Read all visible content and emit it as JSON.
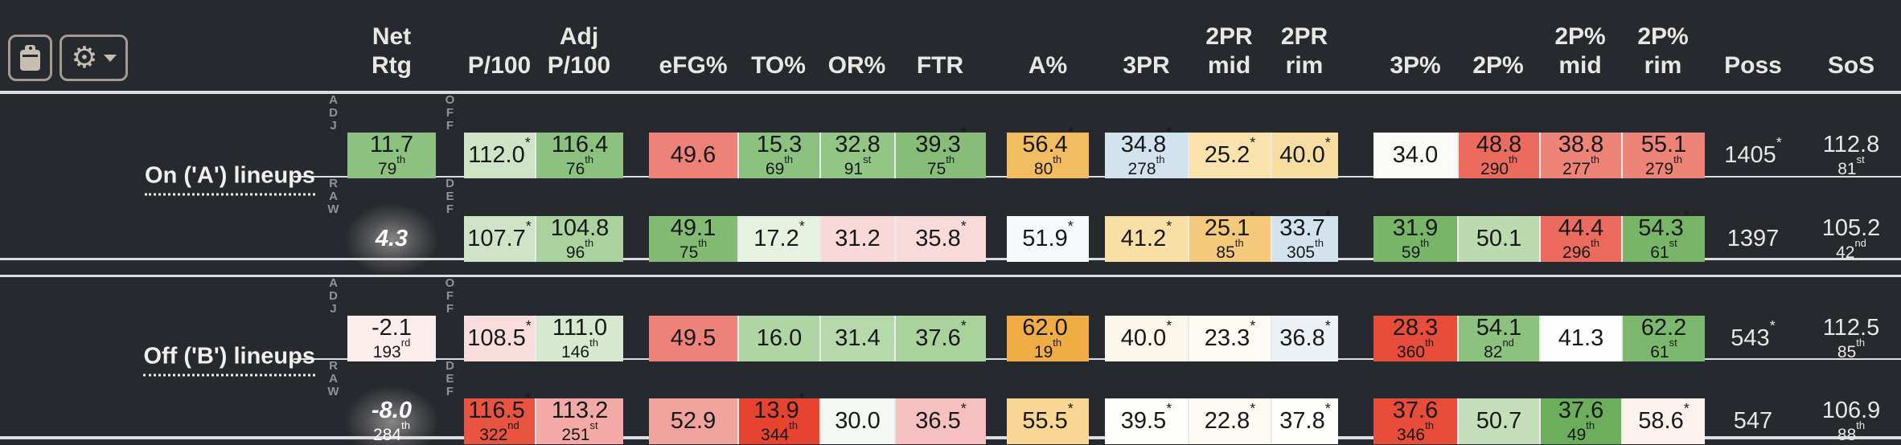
{
  "colors": {
    "background": "#26292e",
    "divider": "#dcdde0",
    "header_text": "#e9e7e3",
    "cell_text": "#17181a",
    "muted_label": "#8f9296",
    "button_border": "#a39b8f",
    "icon": "#c6beb2"
  },
  "toolbar": {
    "buttons": [
      {
        "name": "clipboard",
        "icon": "clipboard-icon"
      },
      {
        "name": "settings",
        "icon": "gear-icon",
        "has_caret": true
      }
    ]
  },
  "header": {
    "columns": [
      {
        "key": "net",
        "l1": "Net",
        "l2": "Rtg"
      },
      {
        "key": "p100",
        "l1": "",
        "l2": "P/100"
      },
      {
        "key": "adjp100",
        "l1": "Adj",
        "l2": "P/100"
      },
      {
        "key": "efg",
        "l1": "",
        "l2": "eFG%"
      },
      {
        "key": "to",
        "l1": "",
        "l2": "TO%"
      },
      {
        "key": "or",
        "l1": "",
        "l2": "OR%"
      },
      {
        "key": "ftr",
        "l1": "",
        "l2": "FTR"
      },
      {
        "key": "a",
        "l1": "",
        "l2": "A%"
      },
      {
        "key": "pr3",
        "l1": "",
        "l2": "3PR"
      },
      {
        "key": "prmid",
        "l1": "2PR",
        "l2": "mid"
      },
      {
        "key": "prrim",
        "l1": "2PR",
        "l2": "rim"
      },
      {
        "key": "p3",
        "l1": "",
        "l2": "3P%"
      },
      {
        "key": "p2",
        "l1": "",
        "l2": "2P%"
      },
      {
        "key": "p2mid",
        "l1": "2P%",
        "l2": "mid"
      },
      {
        "key": "p2rim",
        "l1": "2P%",
        "l2": "rim"
      },
      {
        "key": "poss",
        "l1": "",
        "l2": "Poss"
      },
      {
        "key": "sos",
        "l1": "",
        "l2": "SoS"
      }
    ]
  },
  "groups": [
    {
      "label": "On ('A') lineups",
      "rows": [
        {
          "row_label": "ADJ",
          "side_label": "OFF",
          "cells": {
            "net": {
              "v": "11.7",
              "pct": "79th",
              "bg": "#8cc17f"
            },
            "p100": {
              "v": "112.0",
              "star": true,
              "bg": "#cfe4c6"
            },
            "adjp100": {
              "v": "116.4",
              "pct": "76th",
              "bg": "#8cc17f"
            },
            "efg": {
              "v": "49.6",
              "bg": "#ee8279"
            },
            "to": {
              "v": "15.3",
              "pct": "69th",
              "bg": "#8cc17f"
            },
            "or": {
              "v": "32.8",
              "pct": "91st",
              "bg": "#93c585"
            },
            "ftr": {
              "v": "39.3",
              "star": true,
              "pct": "75th",
              "bg": "#87bd78"
            },
            "a": {
              "v": "56.4",
              "star": true,
              "pct": "80th",
              "bg": "#f2bd60"
            },
            "pr3": {
              "v": "34.8",
              "star": true,
              "pct": "278th",
              "bg": "#d2e3ed"
            },
            "prmid": {
              "v": "25.2",
              "star": true,
              "bg": "#f9e2ab"
            },
            "prrim": {
              "v": "40.0",
              "star": true,
              "bg": "#f8dda1"
            },
            "p3": {
              "v": "34.0",
              "bg": "#fafaf6"
            },
            "p2": {
              "v": "48.8",
              "pct": "290th",
              "bg": "#eb6c5f"
            },
            "p2mid": {
              "v": "38.8",
              "pct": "277th",
              "bg": "#ee8478"
            },
            "p2rim": {
              "v": "55.1",
              "pct": "279th",
              "bg": "#ee8478"
            },
            "poss": {
              "v": "1405",
              "star": true
            },
            "sos": {
              "v": "112.8",
              "pct": "81st"
            }
          }
        },
        {
          "row_label": "RAW",
          "side_label": "DEF",
          "cells": {
            "net": {
              "v": "4.3",
              "glow": true
            },
            "p100": {
              "v": "107.7",
              "star": true,
              "bg": "#cfe4c6"
            },
            "adjp100": {
              "v": "104.8",
              "pct": "96th",
              "bg": "#abd29e"
            },
            "efg": {
              "v": "49.1",
              "pct": "75th",
              "bg": "#83ba74"
            },
            "to": {
              "v": "17.2",
              "star": true,
              "bg": "#e6f1e0"
            },
            "or": {
              "v": "31.2",
              "bg": "#f8d8d8"
            },
            "ftr": {
              "v": "35.8",
              "star": true,
              "bg": "#f9dada"
            },
            "a": {
              "v": "51.9",
              "star": true,
              "bg": "#f6fafa"
            },
            "pr3": {
              "v": "41.2",
              "star": true,
              "bg": "#f8dfa6"
            },
            "prmid": {
              "v": "25.1",
              "star": true,
              "pct": "85th",
              "bg": "#f5c97b"
            },
            "prrim": {
              "v": "33.7",
              "star": true,
              "pct": "305th",
              "bg": "#d2e3ed"
            },
            "p3": {
              "v": "31.9",
              "pct": "59th",
              "bg": "#79b569"
            },
            "p2": {
              "v": "50.1",
              "bg": "#bcdab0"
            },
            "p2mid": {
              "v": "44.4",
              "pct": "296th",
              "bg": "#eb6c5f"
            },
            "p2rim": {
              "v": "54.3",
              "star": true,
              "pct": "61st",
              "bg": "#79b569"
            },
            "poss": {
              "v": "1397"
            },
            "sos": {
              "v": "105.2",
              "pct": "42nd"
            }
          }
        }
      ]
    },
    {
      "label": "Off ('B') lineups",
      "rows": [
        {
          "row_label": "ADJ",
          "side_label": "OFF",
          "cells": {
            "net": {
              "v": "-2.1",
              "pct": "193rd",
              "bg": "#fbedeb"
            },
            "p100": {
              "v": "108.5",
              "star": true,
              "bg": "#f9dcdc"
            },
            "adjp100": {
              "v": "111.0",
              "pct": "146th",
              "bg": "#d6e8ce"
            },
            "efg": {
              "v": "49.5",
              "bg": "#ee8279"
            },
            "to": {
              "v": "16.0",
              "bg": "#b0d5a4"
            },
            "or": {
              "v": "31.4",
              "bg": "#b6d8aa"
            },
            "ftr": {
              "v": "37.6",
              "star": true,
              "bg": "#a9d29c"
            },
            "a": {
              "v": "62.0",
              "star": true,
              "pct": "19th",
              "bg": "#f1ad45"
            },
            "pr3": {
              "v": "40.0",
              "star": true,
              "bg": "#fdf6eb"
            },
            "prmid": {
              "v": "23.3",
              "star": true,
              "bg": "#fefbf4"
            },
            "prrim": {
              "v": "36.8",
              "star": true,
              "bg": "#ebf1f4"
            },
            "p3": {
              "v": "28.3",
              "pct": "360th",
              "bg": "#e84c3a"
            },
            "p2": {
              "v": "54.1",
              "pct": "82nd",
              "bg": "#8cc17f"
            },
            "p2mid": {
              "v": "41.3",
              "bg": "#fefefe"
            },
            "p2rim": {
              "v": "62.2",
              "pct": "61st",
              "bg": "#7cb76e"
            },
            "poss": {
              "v": "543",
              "star": true
            },
            "sos": {
              "v": "112.5",
              "pct": "85th"
            }
          }
        },
        {
          "row_label": "RAW",
          "side_label": "DEF",
          "cells": {
            "net": {
              "v": "-8.0",
              "pct": "284th",
              "glow": true
            },
            "p100": {
              "v": "116.5",
              "star": true,
              "pct": "322nd",
              "bg": "#e85440"
            },
            "adjp100": {
              "v": "113.2",
              "pct": "251st",
              "bg": "#f3aaa6"
            },
            "efg": {
              "v": "52.9",
              "bg": "#f0a29c"
            },
            "to": {
              "v": "13.9",
              "star": true,
              "pct": "344th",
              "bg": "#e64330"
            },
            "or": {
              "v": "30.0",
              "bg": "#f4f7f2"
            },
            "ftr": {
              "v": "36.5",
              "star": true,
              "bg": "#f6c0c0"
            },
            "a": {
              "v": "55.5",
              "star": true,
              "bg": "#f8d795"
            },
            "pr3": {
              "v": "39.5",
              "star": true,
              "bg": "#fefefb"
            },
            "prmid": {
              "v": "22.8",
              "star": true,
              "bg": "#fefbf4"
            },
            "prrim": {
              "v": "37.8",
              "star": true,
              "bg": "#fdfdfa"
            },
            "p3": {
              "v": "37.6",
              "pct": "346th",
              "bg": "#e84c3a"
            },
            "p2": {
              "v": "50.7",
              "bg": "#c6dfbb"
            },
            "p2mid": {
              "v": "37.6",
              "pct": "49th",
              "bg": "#6cae5c"
            },
            "p2rim": {
              "v": "58.6",
              "star": true,
              "bg": "#fdf2ee"
            },
            "poss": {
              "v": "547"
            },
            "sos": {
              "v": "106.9",
              "pct": "88th"
            }
          }
        }
      ]
    }
  ]
}
